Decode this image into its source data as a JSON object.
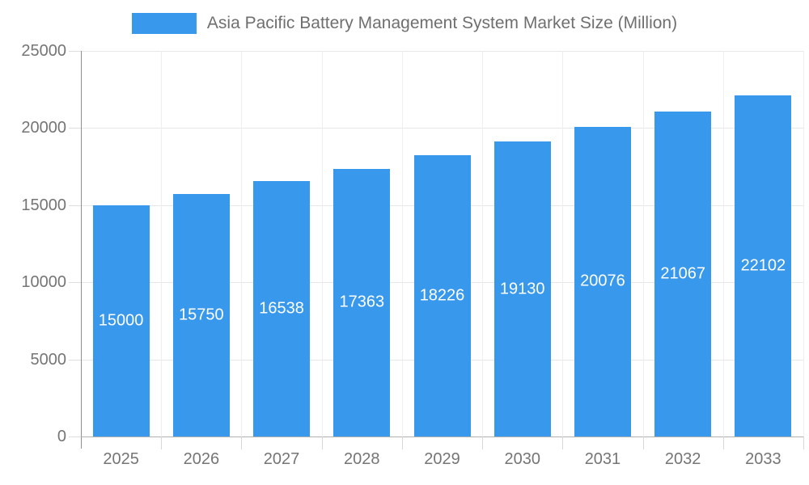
{
  "legend": {
    "label": "Asia Pacific Battery Management System Market Size (Million)",
    "swatch_color": "#3898ec"
  },
  "chart_data": {
    "type": "bar",
    "title": "Asia Pacific Battery Management System Market Size (Million)",
    "categories": [
      "2025",
      "2026",
      "2027",
      "2028",
      "2029",
      "2030",
      "2031",
      "2032",
      "2033"
    ],
    "values": [
      15000,
      15750,
      16538,
      17363,
      18226,
      19130,
      20076,
      21067,
      22102
    ],
    "xlabel": "",
    "ylabel": "",
    "ylim": [
      0,
      25000
    ],
    "yticks": [
      0,
      5000,
      10000,
      15000,
      20000,
      25000
    ],
    "grid": true,
    "legend_position": "top",
    "bar_color": "#3898ec",
    "value_label_color": "#ffffff",
    "axis_text_color": "#757575"
  }
}
